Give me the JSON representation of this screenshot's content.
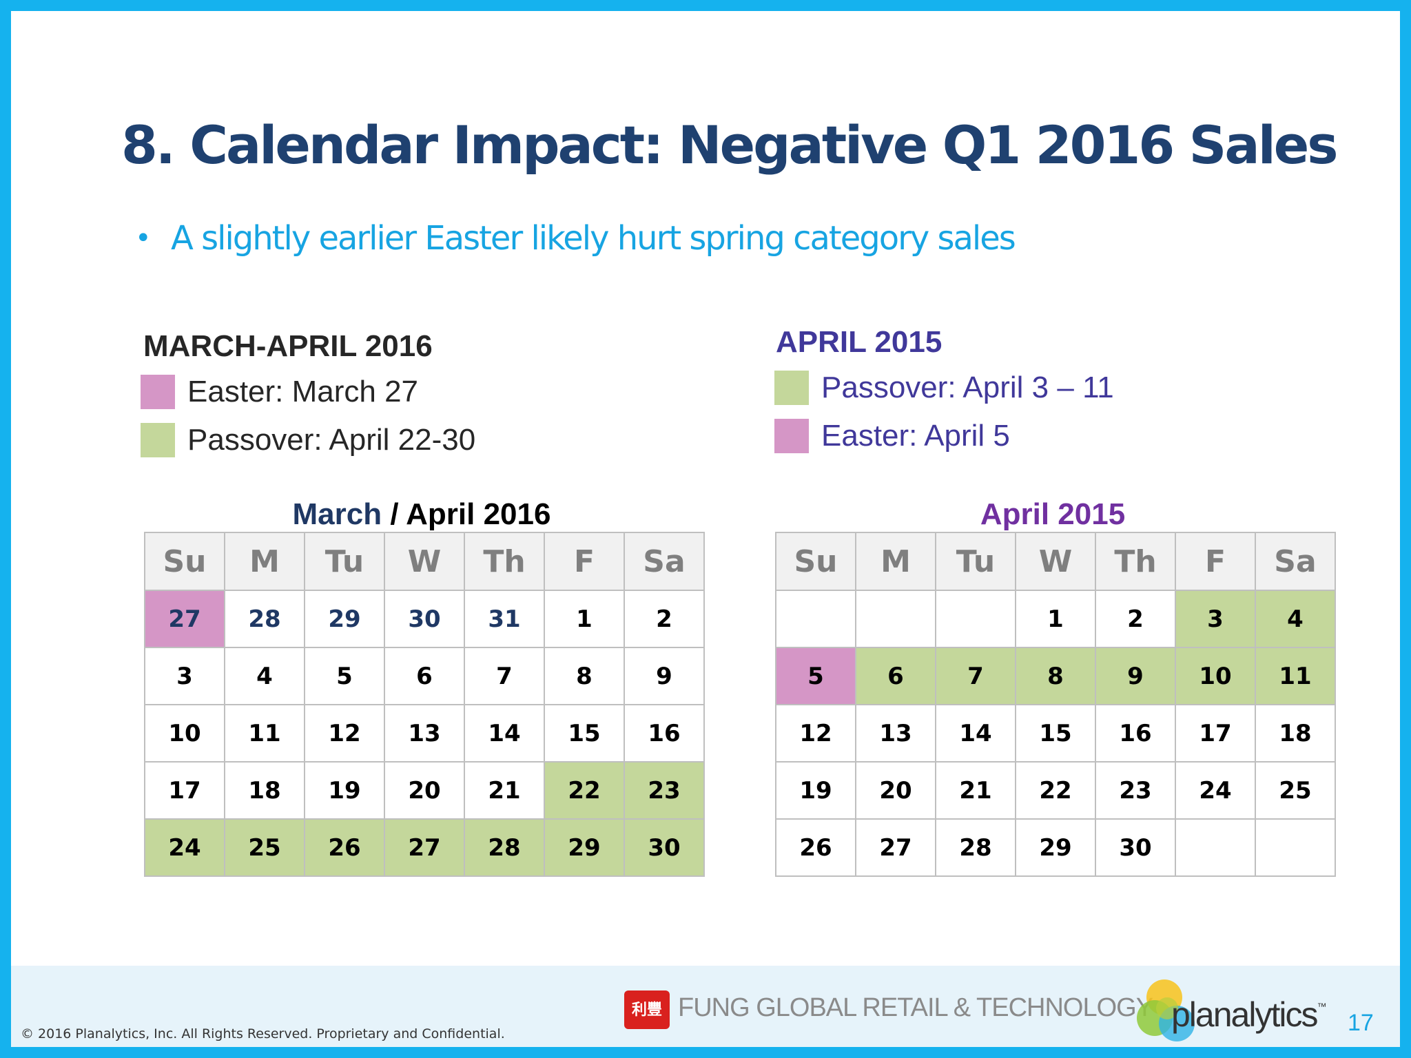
{
  "title": "8. Calendar Impact: Negative Q1 2016 Sales",
  "bullet": "A slightly earlier Easter likely hurt spring category sales",
  "bullet_marker": "•",
  "colors": {
    "easter": "#d596c6",
    "passover": "#c4d79b",
    "title": "#1f4170",
    "accent_blue": "#17a4e2",
    "purple": "#40389a",
    "dark_blue": "#1f3864",
    "cal2015_title": "#7030a0"
  },
  "left_legend": {
    "title": "MARCH-APRIL 2016",
    "items": [
      {
        "label": "Easter: March 27",
        "swatch": "easter"
      },
      {
        "label": "Passover: April 22-30",
        "swatch": "passover"
      }
    ]
  },
  "right_legend": {
    "title": "APRIL 2015",
    "items": [
      {
        "label": "Passover: April 3 – 11",
        "swatch": "passover"
      },
      {
        "label": "Easter: April 5",
        "swatch": "easter"
      }
    ]
  },
  "cal2016": {
    "title_a": "March",
    "title_sep": " / ",
    "title_b": "April 2016",
    "days": [
      "Su",
      "M",
      "Tu",
      "W",
      "Th",
      "F",
      "Sa"
    ],
    "weeks": [
      [
        {
          "d": "27",
          "h": "easter",
          "m": "prev"
        },
        {
          "d": "28",
          "m": "prev"
        },
        {
          "d": "29",
          "m": "prev"
        },
        {
          "d": "30",
          "m": "prev"
        },
        {
          "d": "31",
          "m": "prev"
        },
        {
          "d": "1"
        },
        {
          "d": "2"
        }
      ],
      [
        {
          "d": "3"
        },
        {
          "d": "4"
        },
        {
          "d": "5"
        },
        {
          "d": "6"
        },
        {
          "d": "7"
        },
        {
          "d": "8"
        },
        {
          "d": "9"
        }
      ],
      [
        {
          "d": "10"
        },
        {
          "d": "11"
        },
        {
          "d": "12"
        },
        {
          "d": "13"
        },
        {
          "d": "14"
        },
        {
          "d": "15"
        },
        {
          "d": "16"
        }
      ],
      [
        {
          "d": "17"
        },
        {
          "d": "18"
        },
        {
          "d": "19"
        },
        {
          "d": "20"
        },
        {
          "d": "21"
        },
        {
          "d": "22",
          "h": "passover"
        },
        {
          "d": "23",
          "h": "passover"
        }
      ],
      [
        {
          "d": "24",
          "h": "passover"
        },
        {
          "d": "25",
          "h": "passover"
        },
        {
          "d": "26",
          "h": "passover"
        },
        {
          "d": "27",
          "h": "passover"
        },
        {
          "d": "28",
          "h": "passover"
        },
        {
          "d": "29",
          "h": "passover"
        },
        {
          "d": "30",
          "h": "passover"
        }
      ]
    ]
  },
  "cal2015": {
    "title": "April 2015",
    "days": [
      "Su",
      "M",
      "Tu",
      "W",
      "Th",
      "F",
      "Sa"
    ],
    "weeks": [
      [
        {
          "d": ""
        },
        {
          "d": ""
        },
        {
          "d": ""
        },
        {
          "d": "1"
        },
        {
          "d": "2"
        },
        {
          "d": "3",
          "h": "passover"
        },
        {
          "d": "4",
          "h": "passover"
        }
      ],
      [
        {
          "d": "5",
          "h": "easter"
        },
        {
          "d": "6",
          "h": "passover"
        },
        {
          "d": "7",
          "h": "passover"
        },
        {
          "d": "8",
          "h": "passover"
        },
        {
          "d": "9",
          "h": "passover"
        },
        {
          "d": "10",
          "h": "passover"
        },
        {
          "d": "11",
          "h": "passover"
        }
      ],
      [
        {
          "d": "12"
        },
        {
          "d": "13"
        },
        {
          "d": "14"
        },
        {
          "d": "15"
        },
        {
          "d": "16"
        },
        {
          "d": "17"
        },
        {
          "d": "18"
        }
      ],
      [
        {
          "d": "19"
        },
        {
          "d": "20"
        },
        {
          "d": "21"
        },
        {
          "d": "22"
        },
        {
          "d": "23"
        },
        {
          "d": "24"
        },
        {
          "d": "25"
        }
      ],
      [
        {
          "d": "26"
        },
        {
          "d": "27"
        },
        {
          "d": "28"
        },
        {
          "d": "29"
        },
        {
          "d": "30"
        },
        {
          "d": ""
        },
        {
          "d": ""
        }
      ]
    ]
  },
  "footer": {
    "copyright": "© 2016 Planalytics, Inc. All Rights Reserved. Proprietary and Confidential.",
    "fung_logo_icon": "fung-logo-icon",
    "fung_logo_glyph": "利豐",
    "fung_text": "FUNG GLOBAL RETAIL & TECHNOLOGY",
    "planalytics_icon": "planalytics-logo-icon",
    "planalytics_text": "planalytics",
    "planalytics_tm": "™",
    "page_number": "17"
  }
}
